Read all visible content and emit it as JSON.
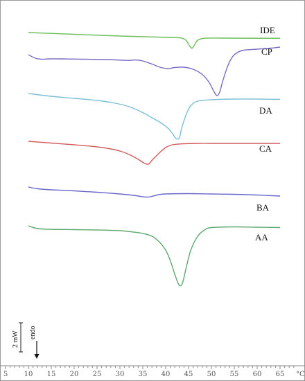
{
  "chart_data": {
    "type": "line",
    "title": "",
    "xlabel": "",
    "x_unit": "°C",
    "xlim": [
      5,
      68
    ],
    "x_ticks": [
      5,
      10,
      15,
      20,
      25,
      30,
      35,
      40,
      45,
      50,
      55,
      60,
      65
    ],
    "scale_bar_label": "2 mW",
    "endo_label": "endo",
    "series": [
      {
        "name": "IDE",
        "color": "#6cbf5a",
        "points": [
          [
            10,
            0
          ],
          [
            20,
            5
          ],
          [
            30,
            10
          ],
          [
            38,
            13
          ],
          [
            42,
            14.5
          ],
          [
            43.5,
            16
          ],
          [
            44.5,
            23
          ],
          [
            45.3,
            40
          ],
          [
            45.8,
            45
          ],
          [
            46.3,
            36
          ],
          [
            47,
            22
          ],
          [
            48.5,
            16.5
          ],
          [
            52,
            16
          ],
          [
            60,
            16.5
          ],
          [
            65,
            16.5
          ]
        ]
      },
      {
        "name": "CP",
        "color": "#7b6bc4",
        "points": [
          [
            10,
            0
          ],
          [
            11.5,
            10
          ],
          [
            13,
            13
          ],
          [
            14.5,
            12
          ],
          [
            17,
            12
          ],
          [
            22,
            13
          ],
          [
            27,
            14
          ],
          [
            31,
            16
          ],
          [
            32,
            16.5
          ],
          [
            33.5,
            15
          ],
          [
            35,
            18
          ],
          [
            37,
            27
          ],
          [
            39,
            37
          ],
          [
            40.5,
            40
          ],
          [
            42,
            37
          ],
          [
            44,
            36
          ],
          [
            46,
            42
          ],
          [
            48,
            57
          ],
          [
            49.5,
            80
          ],
          [
            50.5,
            105
          ],
          [
            51.2,
            118
          ],
          [
            51.8,
            108
          ],
          [
            52.5,
            75
          ],
          [
            53.5,
            35
          ],
          [
            54.5,
            8
          ],
          [
            55.5,
            -5
          ],
          [
            57,
            -13
          ],
          [
            60,
            -16
          ],
          [
            63,
            -19
          ],
          [
            65,
            -22
          ]
        ]
      },
      {
        "name": "DA",
        "color": "#7bbfd6",
        "points": [
          [
            10,
            0
          ],
          [
            15,
            8
          ],
          [
            20,
            14
          ],
          [
            25,
            20
          ],
          [
            29,
            28
          ],
          [
            32,
            38
          ],
          [
            35,
            55
          ],
          [
            37,
            70
          ],
          [
            39,
            85
          ],
          [
            40.5,
            100
          ],
          [
            41.5,
            116
          ],
          [
            42.3,
            130
          ],
          [
            43,
            128
          ],
          [
            43.5,
            100
          ],
          [
            44.5,
            60
          ],
          [
            45.5,
            35
          ],
          [
            47,
            22
          ],
          [
            50,
            18
          ],
          [
            55,
            16
          ],
          [
            60,
            16
          ],
          [
            65,
            17
          ]
        ]
      },
      {
        "name": "CA",
        "color": "#d35a5a",
        "points": [
          [
            10,
            0
          ],
          [
            15,
            5
          ],
          [
            20,
            10
          ],
          [
            25,
            16
          ],
          [
            28,
            22
          ],
          [
            30,
            28
          ],
          [
            32,
            38
          ],
          [
            34,
            52
          ],
          [
            35.3,
            63
          ],
          [
            36.2,
            66
          ],
          [
            37,
            55
          ],
          [
            38.5,
            35
          ],
          [
            40,
            18
          ],
          [
            41.5,
            10
          ],
          [
            44,
            7
          ],
          [
            47,
            6
          ],
          [
            50,
            6
          ],
          [
            55,
            6
          ],
          [
            60,
            6
          ],
          [
            65,
            6
          ]
        ]
      },
      {
        "name": "BA",
        "color": "#6b66cc",
        "points": [
          [
            10,
            0
          ],
          [
            12,
            5
          ],
          [
            15,
            8
          ],
          [
            20,
            11
          ],
          [
            25,
            15
          ],
          [
            30,
            20
          ],
          [
            33,
            24
          ],
          [
            35,
            28
          ],
          [
            36,
            29
          ],
          [
            37,
            27
          ],
          [
            38.5,
            22
          ],
          [
            40,
            20
          ],
          [
            45,
            19
          ],
          [
            50,
            20
          ],
          [
            55,
            21
          ],
          [
            60,
            23
          ],
          [
            65,
            26
          ]
        ]
      },
      {
        "name": "AA",
        "color": "#5ea86e",
        "points": [
          [
            10,
            0
          ],
          [
            12,
            8
          ],
          [
            15,
            10
          ],
          [
            20,
            11
          ],
          [
            25,
            12
          ],
          [
            30,
            14
          ],
          [
            33,
            18
          ],
          [
            35,
            22
          ],
          [
            37,
            30
          ],
          [
            38.5,
            45
          ],
          [
            40,
            70
          ],
          [
            41,
            100
          ],
          [
            42,
            140
          ],
          [
            42.8,
            168
          ],
          [
            43.3,
            173
          ],
          [
            43.8,
            160
          ],
          [
            44.5,
            120
          ],
          [
            45.5,
            70
          ],
          [
            47,
            30
          ],
          [
            48.5,
            12
          ],
          [
            50,
            5
          ],
          [
            55,
            3
          ],
          [
            60,
            4
          ],
          [
            65,
            5
          ]
        ]
      }
    ],
    "legend": "labels-at-right",
    "grid": false
  }
}
